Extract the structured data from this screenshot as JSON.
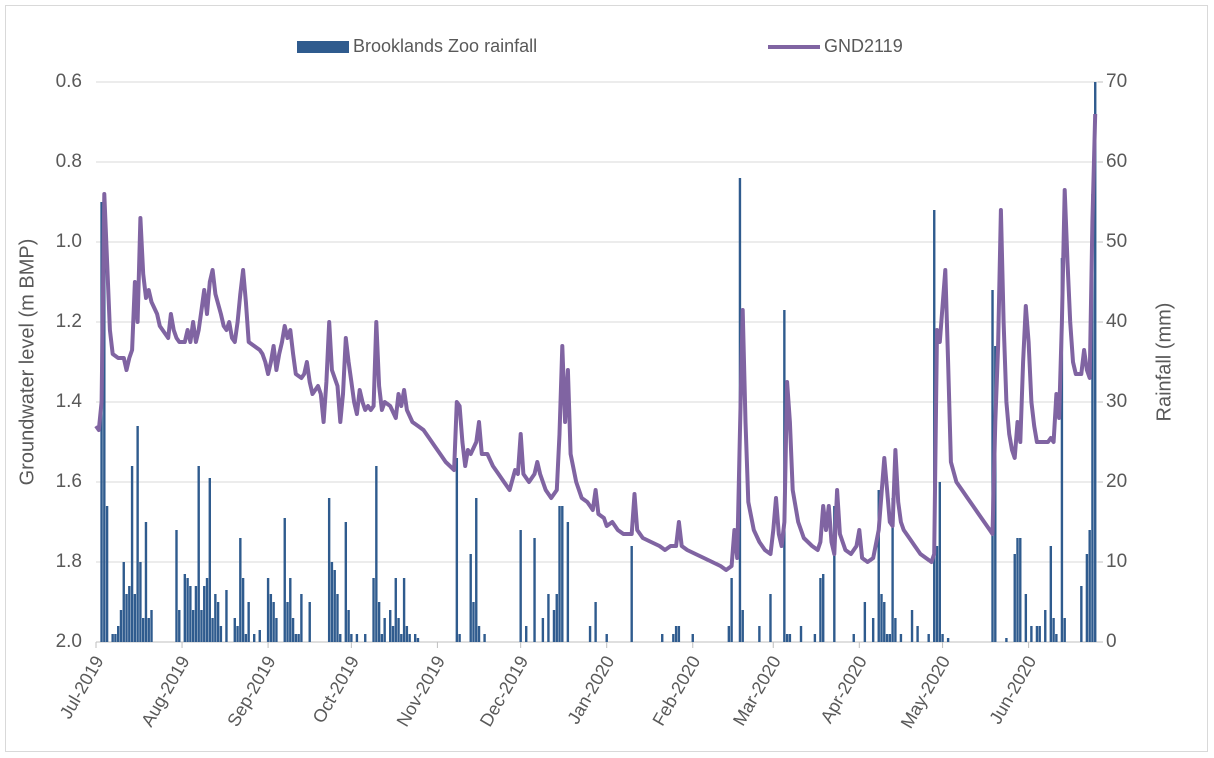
{
  "chart_data": {
    "type": "combo",
    "y_label": "Groundwater level (m BMP)",
    "y2_label": "Rainfall (mm)",
    "invert_y": true,
    "grid": true,
    "legend": "top",
    "xlim": [
      0,
      361
    ],
    "xticks": [
      {
        "value": 0,
        "label": "Jul-2019"
      },
      {
        "value": 31,
        "label": "Aug-2019"
      },
      {
        "value": 62,
        "label": "Sep-2019"
      },
      {
        "value": 92,
        "label": "Oct-2019"
      },
      {
        "value": 123,
        "label": "Nov-2019"
      },
      {
        "value": 153,
        "label": "Dec-2019"
      },
      {
        "value": 184,
        "label": "Jan-2020"
      },
      {
        "value": 215,
        "label": "Feb-2020"
      },
      {
        "value": 244,
        "label": "Mar-2020"
      },
      {
        "value": 275,
        "label": "Apr-2020"
      },
      {
        "value": 305,
        "label": "May-2020"
      },
      {
        "value": 336,
        "label": "Jun-2020"
      }
    ],
    "ylim": [
      0.6,
      2.0
    ],
    "yticks": [
      0.6,
      0.8,
      {
        "value": 1,
        "label": "1.0"
      },
      1.2,
      1.4,
      1.6,
      1.8,
      {
        "value": 2,
        "label": "2.0"
      }
    ],
    "y2lim": [
      0,
      70
    ],
    "y2ticks": [
      0,
      10,
      20,
      30,
      40,
      50,
      60,
      70
    ],
    "series": [
      {
        "name": "Brooklands Zoo rainfall",
        "type": "bar",
        "axis": "y2",
        "color": "#2f5b8e",
        "x": [
          2,
          3,
          4,
          6,
          7,
          8,
          9,
          10,
          11,
          12,
          13,
          14,
          15,
          16,
          17,
          18,
          19,
          20,
          29,
          30,
          32,
          33,
          34,
          35,
          36,
          37,
          38,
          39,
          40,
          41,
          42,
          43,
          44,
          45,
          47,
          50,
          51,
          52,
          53,
          54,
          55,
          57,
          59,
          62,
          63,
          64,
          65,
          68,
          69,
          70,
          71,
          72,
          73,
          74,
          77,
          84,
          85,
          86,
          87,
          88,
          90,
          91,
          92,
          94,
          97,
          100,
          101,
          102,
          103,
          104,
          106,
          107,
          108,
          109,
          110,
          111,
          112,
          113,
          115,
          116,
          130,
          131,
          135,
          136,
          137,
          138,
          140,
          153,
          155,
          158,
          161,
          163,
          165,
          166,
          167,
          168,
          170,
          178,
          180,
          184,
          193,
          204,
          208,
          209,
          210,
          215,
          228,
          229,
          232,
          233,
          239,
          243,
          248,
          249,
          250,
          254,
          259,
          261,
          262,
          266,
          273,
          277,
          280,
          282,
          283,
          284,
          285,
          286,
          287,
          288,
          290,
          294,
          296,
          300,
          302,
          303,
          304,
          305,
          307,
          323,
          324,
          328,
          331,
          332,
          333,
          335,
          337,
          339,
          340,
          342,
          344,
          345,
          346,
          348,
          349,
          355,
          357,
          358,
          359,
          360
        ],
        "values": [
          55,
          56,
          17,
          1,
          1,
          2,
          4,
          10,
          6,
          7,
          22,
          6,
          27,
          10,
          3,
          15,
          3,
          4,
          14,
          4,
          8.5,
          8,
          7,
          4,
          7,
          22,
          4,
          7,
          8,
          20.5,
          3,
          6,
          5,
          2,
          6.5,
          3,
          2,
          13,
          8,
          1,
          5,
          1,
          1.5,
          8,
          6,
          5,
          3,
          15.5,
          5,
          8,
          3,
          1,
          1,
          6,
          5,
          18,
          10,
          9,
          6,
          1,
          15,
          4,
          1,
          1,
          1,
          8,
          22,
          5,
          1,
          3,
          4,
          2,
          8,
          3,
          1,
          8,
          2,
          1,
          1,
          0.5,
          23,
          1,
          11,
          5,
          18,
          2,
          1,
          14,
          2,
          13,
          3,
          6,
          4,
          6,
          17,
          17,
          15,
          2,
          5,
          1,
          12,
          1,
          1,
          2,
          2,
          1,
          2,
          8,
          58,
          4,
          2,
          6,
          41.5,
          1,
          1,
          2,
          1,
          8,
          8.5,
          17,
          1,
          5,
          3,
          19,
          6,
          5,
          1,
          1,
          18,
          3,
          1,
          4,
          2,
          1,
          54,
          12,
          20,
          1,
          0.5,
          44,
          37,
          0.5,
          11,
          13,
          13,
          6,
          2,
          2,
          2,
          4,
          12,
          3,
          1,
          48,
          3,
          7,
          11,
          14,
          56,
          70
        ]
      },
      {
        "name": "GND2119",
        "type": "line",
        "color": "#8064a2",
        "x": [
          0,
          1,
          2,
          3,
          4,
          5,
          6,
          8,
          10,
          11,
          12,
          13,
          14,
          15,
          16,
          17,
          18,
          19,
          20,
          22,
          23,
          25,
          26,
          27,
          28,
          29,
          30,
          32,
          33,
          34,
          35,
          36,
          37,
          38,
          39,
          40,
          41,
          42,
          43,
          45,
          46,
          47,
          48,
          49,
          50,
          51,
          52,
          53,
          54,
          55,
          57,
          59,
          60,
          61,
          62,
          63,
          64,
          65,
          66,
          67,
          68,
          69,
          70,
          71,
          72,
          74,
          75,
          76,
          77,
          78,
          80,
          81,
          82,
          83,
          84,
          85,
          86,
          87,
          88,
          89,
          90,
          91,
          92,
          93,
          94,
          95,
          96,
          97,
          98,
          99,
          100,
          101,
          102,
          103,
          104,
          106,
          108,
          109,
          110,
          111,
          112,
          114,
          116,
          118,
          120,
          122,
          124,
          126,
          129,
          130,
          131,
          132,
          133,
          134,
          135,
          137,
          138,
          139,
          141,
          143,
          145,
          147,
          149,
          151,
          152,
          153,
          154,
          156,
          158,
          159,
          160,
          162,
          164,
          166,
          167,
          168,
          169,
          170,
          171,
          173,
          175,
          177,
          178,
          179,
          180,
          181,
          183,
          184,
          186,
          188,
          190,
          193,
          194,
          195,
          197,
          200,
          203,
          205,
          207,
          209,
          210,
          211,
          213,
          216,
          219,
          222,
          225,
          227,
          229,
          230,
          231,
          232,
          233,
          234,
          235,
          237,
          239,
          241,
          243,
          244,
          245,
          246,
          247,
          248,
          249,
          250,
          251,
          253,
          255,
          258,
          260,
          261,
          262,
          263,
          264,
          265,
          266,
          267,
          268,
          270,
          272,
          274,
          275,
          276,
          278,
          280,
          282,
          284,
          285,
          286,
          287,
          288,
          289,
          290,
          291,
          293,
          295,
          297,
          299,
          301,
          302,
          303,
          304,
          306,
          307,
          308,
          310,
          312,
          314,
          316,
          318,
          320,
          322,
          323,
          324,
          325,
          326,
          327,
          328,
          329,
          330,
          331,
          332,
          333,
          334,
          335,
          336,
          337,
          338,
          339,
          341,
          343,
          344,
          345,
          346,
          347,
          348,
          349,
          350,
          351,
          352,
          353,
          355,
          356,
          357,
          358,
          359,
          360
        ],
        "values": [
          1.46,
          1.47,
          1.4,
          0.88,
          1.05,
          1.22,
          1.28,
          1.29,
          1.29,
          1.32,
          1.29,
          1.27,
          1.1,
          1.2,
          0.94,
          1.08,
          1.14,
          1.12,
          1.15,
          1.18,
          1.21,
          1.23,
          1.24,
          1.18,
          1.22,
          1.24,
          1.25,
          1.25,
          1.22,
          1.25,
          1.2,
          1.25,
          1.22,
          1.17,
          1.12,
          1.18,
          1.1,
          1.07,
          1.13,
          1.18,
          1.21,
          1.22,
          1.2,
          1.24,
          1.25,
          1.2,
          1.13,
          1.07,
          1.15,
          1.25,
          1.26,
          1.27,
          1.28,
          1.3,
          1.33,
          1.3,
          1.26,
          1.32,
          1.28,
          1.25,
          1.21,
          1.24,
          1.22,
          1.28,
          1.33,
          1.34,
          1.33,
          1.3,
          1.35,
          1.38,
          1.36,
          1.38,
          1.45,
          1.35,
          1.2,
          1.32,
          1.34,
          1.36,
          1.45,
          1.38,
          1.24,
          1.3,
          1.35,
          1.4,
          1.43,
          1.37,
          1.4,
          1.42,
          1.41,
          1.42,
          1.41,
          1.2,
          1.36,
          1.42,
          1.4,
          1.41,
          1.44,
          1.38,
          1.41,
          1.37,
          1.42,
          1.45,
          1.46,
          1.47,
          1.49,
          1.51,
          1.53,
          1.55,
          1.57,
          1.4,
          1.41,
          1.5,
          1.56,
          1.52,
          1.53,
          1.5,
          1.45,
          1.53,
          1.53,
          1.56,
          1.58,
          1.6,
          1.62,
          1.57,
          1.58,
          1.48,
          1.58,
          1.6,
          1.58,
          1.55,
          1.58,
          1.62,
          1.64,
          1.62,
          1.48,
          1.26,
          1.45,
          1.32,
          1.53,
          1.6,
          1.64,
          1.65,
          1.66,
          1.67,
          1.62,
          1.68,
          1.69,
          1.71,
          1.7,
          1.72,
          1.73,
          1.73,
          1.63,
          1.72,
          1.74,
          1.75,
          1.76,
          1.77,
          1.76,
          1.76,
          1.7,
          1.76,
          1.77,
          1.78,
          1.79,
          1.8,
          1.81,
          1.82,
          1.81,
          1.72,
          1.79,
          1.48,
          1.17,
          1.45,
          1.65,
          1.72,
          1.75,
          1.77,
          1.78,
          1.72,
          1.64,
          1.73,
          1.76,
          1.7,
          1.35,
          1.45,
          1.62,
          1.7,
          1.74,
          1.76,
          1.77,
          1.75,
          1.66,
          1.72,
          1.66,
          1.75,
          1.78,
          1.62,
          1.73,
          1.77,
          1.78,
          1.76,
          1.72,
          1.79,
          1.8,
          1.79,
          1.72,
          1.54,
          1.62,
          1.7,
          1.71,
          1.52,
          1.65,
          1.7,
          1.72,
          1.74,
          1.76,
          1.78,
          1.79,
          1.8,
          1.78,
          1.22,
          1.25,
          1.07,
          1.3,
          1.55,
          1.6,
          1.62,
          1.64,
          1.66,
          1.68,
          1.7,
          1.72,
          1.73,
          1.45,
          1.26,
          0.92,
          1.2,
          1.4,
          1.48,
          1.52,
          1.54,
          1.45,
          1.5,
          1.3,
          1.16,
          1.25,
          1.4,
          1.46,
          1.5,
          1.5,
          1.5,
          1.49,
          1.5,
          1.38,
          1.44,
          1.2,
          0.87,
          1.05,
          1.2,
          1.3,
          1.33,
          1.33,
          1.27,
          1.32,
          1.34,
          0.95,
          0.68
        ]
      }
    ]
  }
}
